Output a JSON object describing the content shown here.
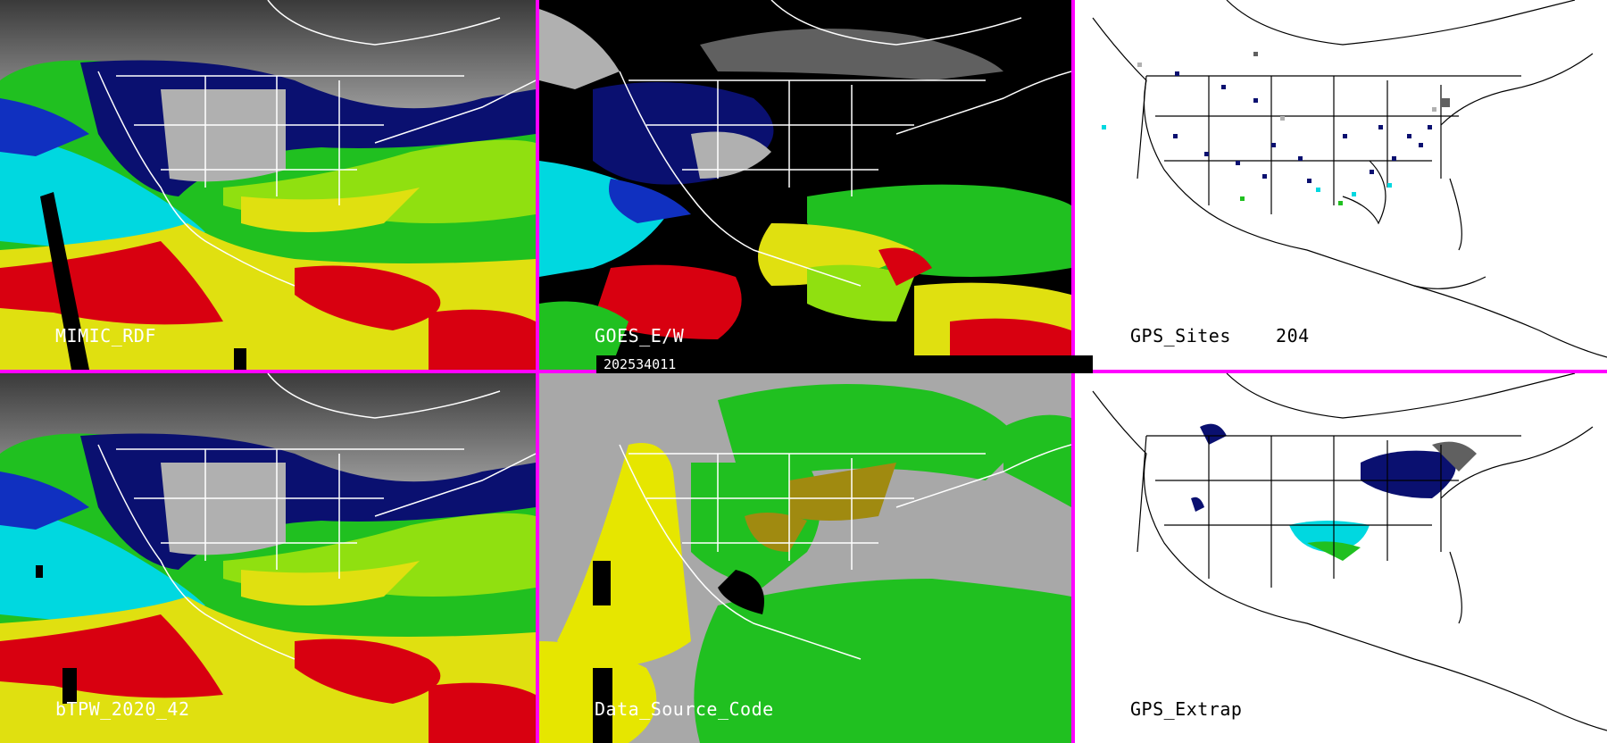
{
  "panels": [
    {
      "id": "mimic",
      "label": "MIMIC_RDF",
      "theme": "tpw"
    },
    {
      "id": "goes",
      "label": "GOES_E/W",
      "theme": "goes"
    },
    {
      "id": "gps-sites",
      "label": "GPS_Sites    204",
      "theme": "gps"
    },
    {
      "id": "btpw",
      "label": "bTPW_2020_42",
      "theme": "tpw"
    },
    {
      "id": "data-source",
      "label": "Data_Source_Code",
      "theme": "dsc"
    },
    {
      "id": "gps-extrap",
      "label": "GPS_Extrap",
      "theme": "gps-extrap"
    }
  ],
  "timestamp": "202534011",
  "colors": {
    "divider": "#ff00ff",
    "tpw_scale": [
      "#101010",
      "#606060",
      "#b0b0b0",
      "#0a1070",
      "#1030c0",
      "#00d8e0",
      "#20c020",
      "#90e010",
      "#e0e010",
      "#d80010"
    ],
    "dsc": [
      "#a8a8a8",
      "#e6e600",
      "#20c020",
      "#a08a10",
      "#000000"
    ]
  }
}
